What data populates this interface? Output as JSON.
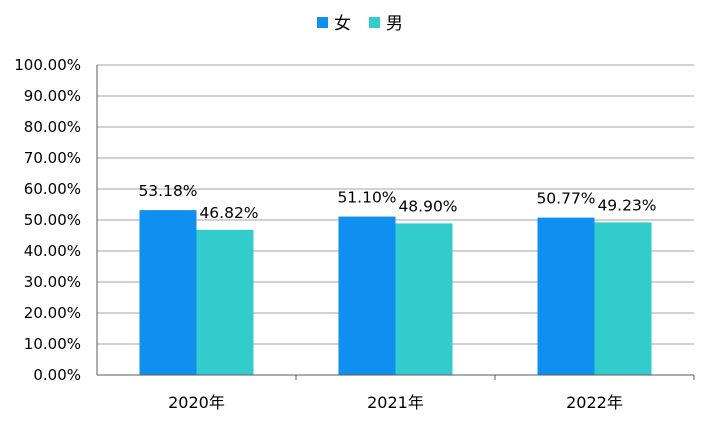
{
  "chart_data": {
    "type": "bar",
    "categories": [
      "2020年",
      "2021年",
      "2022年"
    ],
    "series": [
      {
        "name": "女",
        "values": [
          53.18,
          51.1,
          50.77
        ],
        "labels": [
          "53.18%",
          "51.10%",
          "50.77%"
        ],
        "color": "#0f8ff0"
      },
      {
        "name": "男",
        "values": [
          46.82,
          48.9,
          49.23
        ],
        "labels": [
          "46.82%",
          "48.90%",
          "49.23%"
        ],
        "color": "#33cccc"
      }
    ],
    "y_ticks": [
      "0.00%",
      "10.00%",
      "20.00%",
      "30.00%",
      "40.00%",
      "50.00%",
      "60.00%",
      "70.00%",
      "80.00%",
      "90.00%",
      "100.00%"
    ],
    "ylim": [
      0,
      100
    ],
    "grid": true,
    "legend_position": "top-center",
    "title": "",
    "xlabel": "",
    "ylabel": ""
  },
  "colors": {
    "gridline": "#a6a6a6",
    "axis": "#595959"
  }
}
